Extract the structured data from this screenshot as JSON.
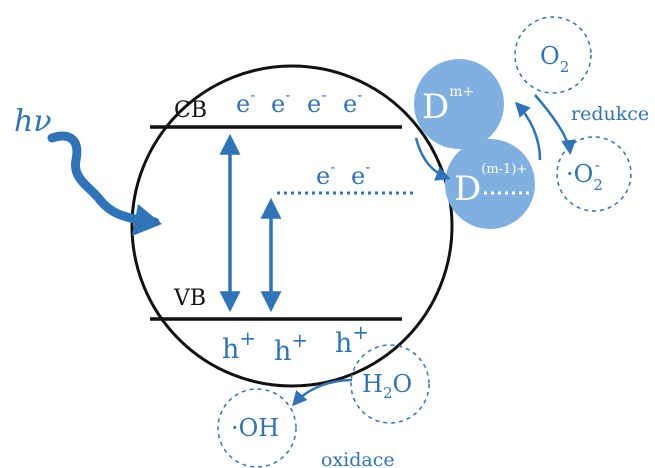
{
  "colors": {
    "accent": "#2f74b8",
    "sphere": "#7fb0e0",
    "line": "#111111"
  },
  "light": {
    "label": "hν"
  },
  "band": {
    "cb_label": "CB",
    "vb_label": "VB",
    "cb_electrons": [
      "e",
      "e",
      "e",
      "e"
    ],
    "electron_sup": "-",
    "defect_electrons": [
      "e",
      "e"
    ],
    "holes": [
      "h",
      "h",
      "h"
    ],
    "hole_sup": "+"
  },
  "donor": {
    "base": "D",
    "charge": "m+",
    "reduced_base": "D",
    "reduced_charge": "(m-1)+"
  },
  "reduction": {
    "o2_base": "O",
    "o2_sub": "2",
    "radical_dot": "·",
    "superoxide_base": "O",
    "superoxide_sub": "2",
    "superoxide_sup": "-",
    "label": "redukce"
  },
  "oxidation": {
    "water": [
      "H",
      "2",
      "O"
    ],
    "hydroxyl": "·OH",
    "label": "oxidace"
  }
}
